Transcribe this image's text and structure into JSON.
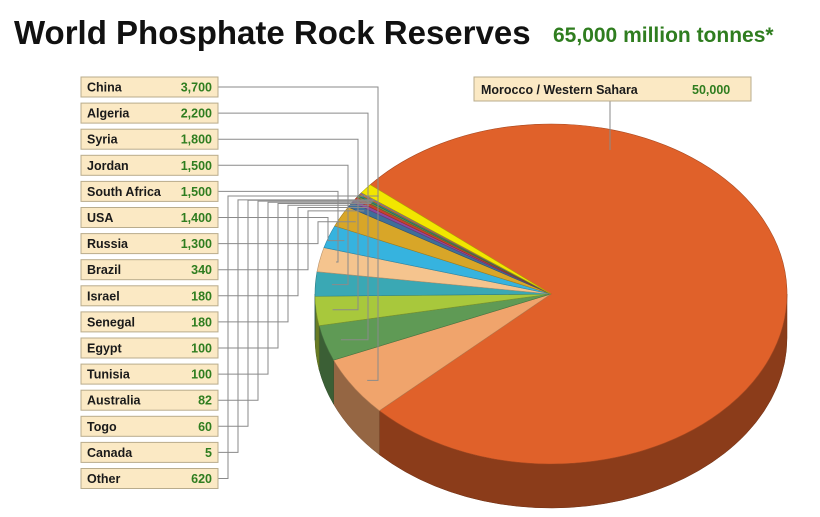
{
  "chart_data": {
    "type": "pie",
    "title": "World Phosphate Rock Reserves",
    "subtitle": "65,000 million tonnes*",
    "slices": [
      {
        "label": "Morocco / Western Sahara",
        "value_label": "50,000",
        "value": 50000,
        "color": "#e0612a"
      },
      {
        "label": "China",
        "value_label": "3,700",
        "value": 3700,
        "color": "#f0a46c"
      },
      {
        "label": "Algeria",
        "value_label": "2,200",
        "value": 2200,
        "color": "#5f9a55"
      },
      {
        "label": "Syria",
        "value_label": "1,800",
        "value": 1800,
        "color": "#a8c83c"
      },
      {
        "label": "Jordan",
        "value_label": "1,500",
        "value": 1500,
        "color": "#3aa8b4"
      },
      {
        "label": "South Africa",
        "value_label": "1,500",
        "value": 1500,
        "color": "#f5c48e"
      },
      {
        "label": "USA",
        "value_label": "1,400",
        "value": 1400,
        "color": "#36b3df"
      },
      {
        "label": "Russia",
        "value_label": "1,300",
        "value": 1300,
        "color": "#d8a628"
      },
      {
        "label": "Brazil",
        "value_label": "340",
        "value": 340,
        "color": "#3f6e99"
      },
      {
        "label": "Israel",
        "value_label": "180",
        "value": 180,
        "color": "#8d4aa0"
      },
      {
        "label": "Senegal",
        "value_label": "180",
        "value": 180,
        "color": "#c8402f"
      },
      {
        "label": "Egypt",
        "value_label": "100",
        "value": 100,
        "color": "#7a8f3a"
      },
      {
        "label": "Tunisia",
        "value_label": "100",
        "value": 100,
        "color": "#2f8a78"
      },
      {
        "label": "Australia",
        "value_label": "82",
        "value": 82,
        "color": "#c97b36"
      },
      {
        "label": "Togo",
        "value_label": "60",
        "value": 60,
        "color": "#9d86c4"
      },
      {
        "label": "Canada",
        "value_label": "5",
        "value": 5,
        "color": "#6a6a6a"
      },
      {
        "label": "Other",
        "value_label": "620",
        "value": 620,
        "color": "#f2e600"
      }
    ]
  }
}
